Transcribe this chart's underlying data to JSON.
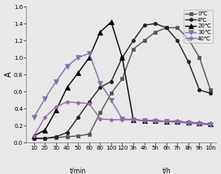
{
  "title": "",
  "ylabel": "A",
  "xlabel_min": "t/min",
  "xlabel_h": "t/h",
  "ylim": [
    0.0,
    1.6
  ],
  "yticks": [
    0.0,
    0.2,
    0.4,
    0.6,
    0.8,
    1.0,
    1.2,
    1.4,
    1.6
  ],
  "x_labels": [
    "10",
    "20",
    "30",
    "40",
    "50",
    "60",
    "80",
    "100",
    "120",
    "3h",
    "4h",
    "5h",
    "6h",
    "7h",
    "8h",
    "9h",
    "10h"
  ],
  "series": [
    {
      "label": "0℃",
      "color": "#555555",
      "marker": "s",
      "markersize": 3,
      "linewidth": 1.0,
      "data_x": [
        1,
        2,
        3,
        4,
        5,
        6,
        7,
        8,
        9,
        10,
        11,
        12,
        13,
        14,
        15,
        16,
        17
      ],
      "data_y": [
        0.05,
        0.05,
        0.06,
        0.07,
        0.08,
        0.1,
        0.35,
        0.58,
        0.75,
        1.1,
        1.2,
        1.3,
        1.35,
        1.35,
        1.22,
        1.0,
        0.62
      ]
    },
    {
      "label": "4℃",
      "color": "#222222",
      "marker": "o",
      "markersize": 3,
      "linewidth": 1.0,
      "data_x": [
        1,
        2,
        3,
        4,
        5,
        6,
        7,
        8,
        9,
        10,
        11,
        12,
        13,
        14,
        15,
        16,
        17
      ],
      "data_y": [
        0.05,
        0.05,
        0.07,
        0.12,
        0.3,
        0.48,
        0.65,
        0.72,
        1.0,
        1.2,
        1.38,
        1.4,
        1.35,
        1.2,
        0.95,
        0.62,
        0.58
      ]
    },
    {
      "label": "20℃",
      "color": "#000000",
      "marker": "^",
      "markersize": 4,
      "linewidth": 1.0,
      "data_x": [
        1,
        2,
        3,
        4,
        5,
        6,
        7,
        8,
        9,
        10,
        11,
        12,
        13,
        14,
        15,
        16,
        17
      ],
      "data_y": [
        0.08,
        0.15,
        0.38,
        0.65,
        0.82,
        1.0,
        1.3,
        1.42,
        1.0,
        0.27,
        0.26,
        0.26,
        0.25,
        0.25,
        0.24,
        0.23,
        0.22
      ]
    },
    {
      "label": "30℃",
      "color": "#7777aa",
      "marker": "v",
      "markersize": 4,
      "linewidth": 1.0,
      "data_x": [
        1,
        2,
        3,
        4,
        5,
        6,
        7,
        8,
        9,
        10,
        11,
        12,
        13,
        14,
        15,
        16,
        17
      ],
      "data_y": [
        0.3,
        0.52,
        0.72,
        0.9,
        1.0,
        1.05,
        0.7,
        0.5,
        0.28,
        0.27,
        0.26,
        0.25,
        0.25,
        0.24,
        0.23,
        0.22,
        0.21
      ]
    },
    {
      "label": "40℃",
      "color": "#9966aa",
      "marker": "D",
      "markersize": 2.5,
      "linewidth": 1.0,
      "data_x": [
        1,
        2,
        3,
        4,
        5,
        6,
        7,
        8,
        9,
        10,
        11,
        12,
        13,
        14,
        15,
        16,
        17
      ],
      "data_y": [
        0.08,
        0.3,
        0.42,
        0.48,
        0.47,
        0.46,
        0.28,
        0.27,
        0.27,
        0.27,
        0.26,
        0.26,
        0.25,
        0.25,
        0.24,
        0.23,
        0.22
      ]
    }
  ],
  "bg_color": "#e8e8e8",
  "legend_fontsize": 5.0,
  "tick_fontsize": 5.0,
  "ylabel_fontsize": 7.0
}
